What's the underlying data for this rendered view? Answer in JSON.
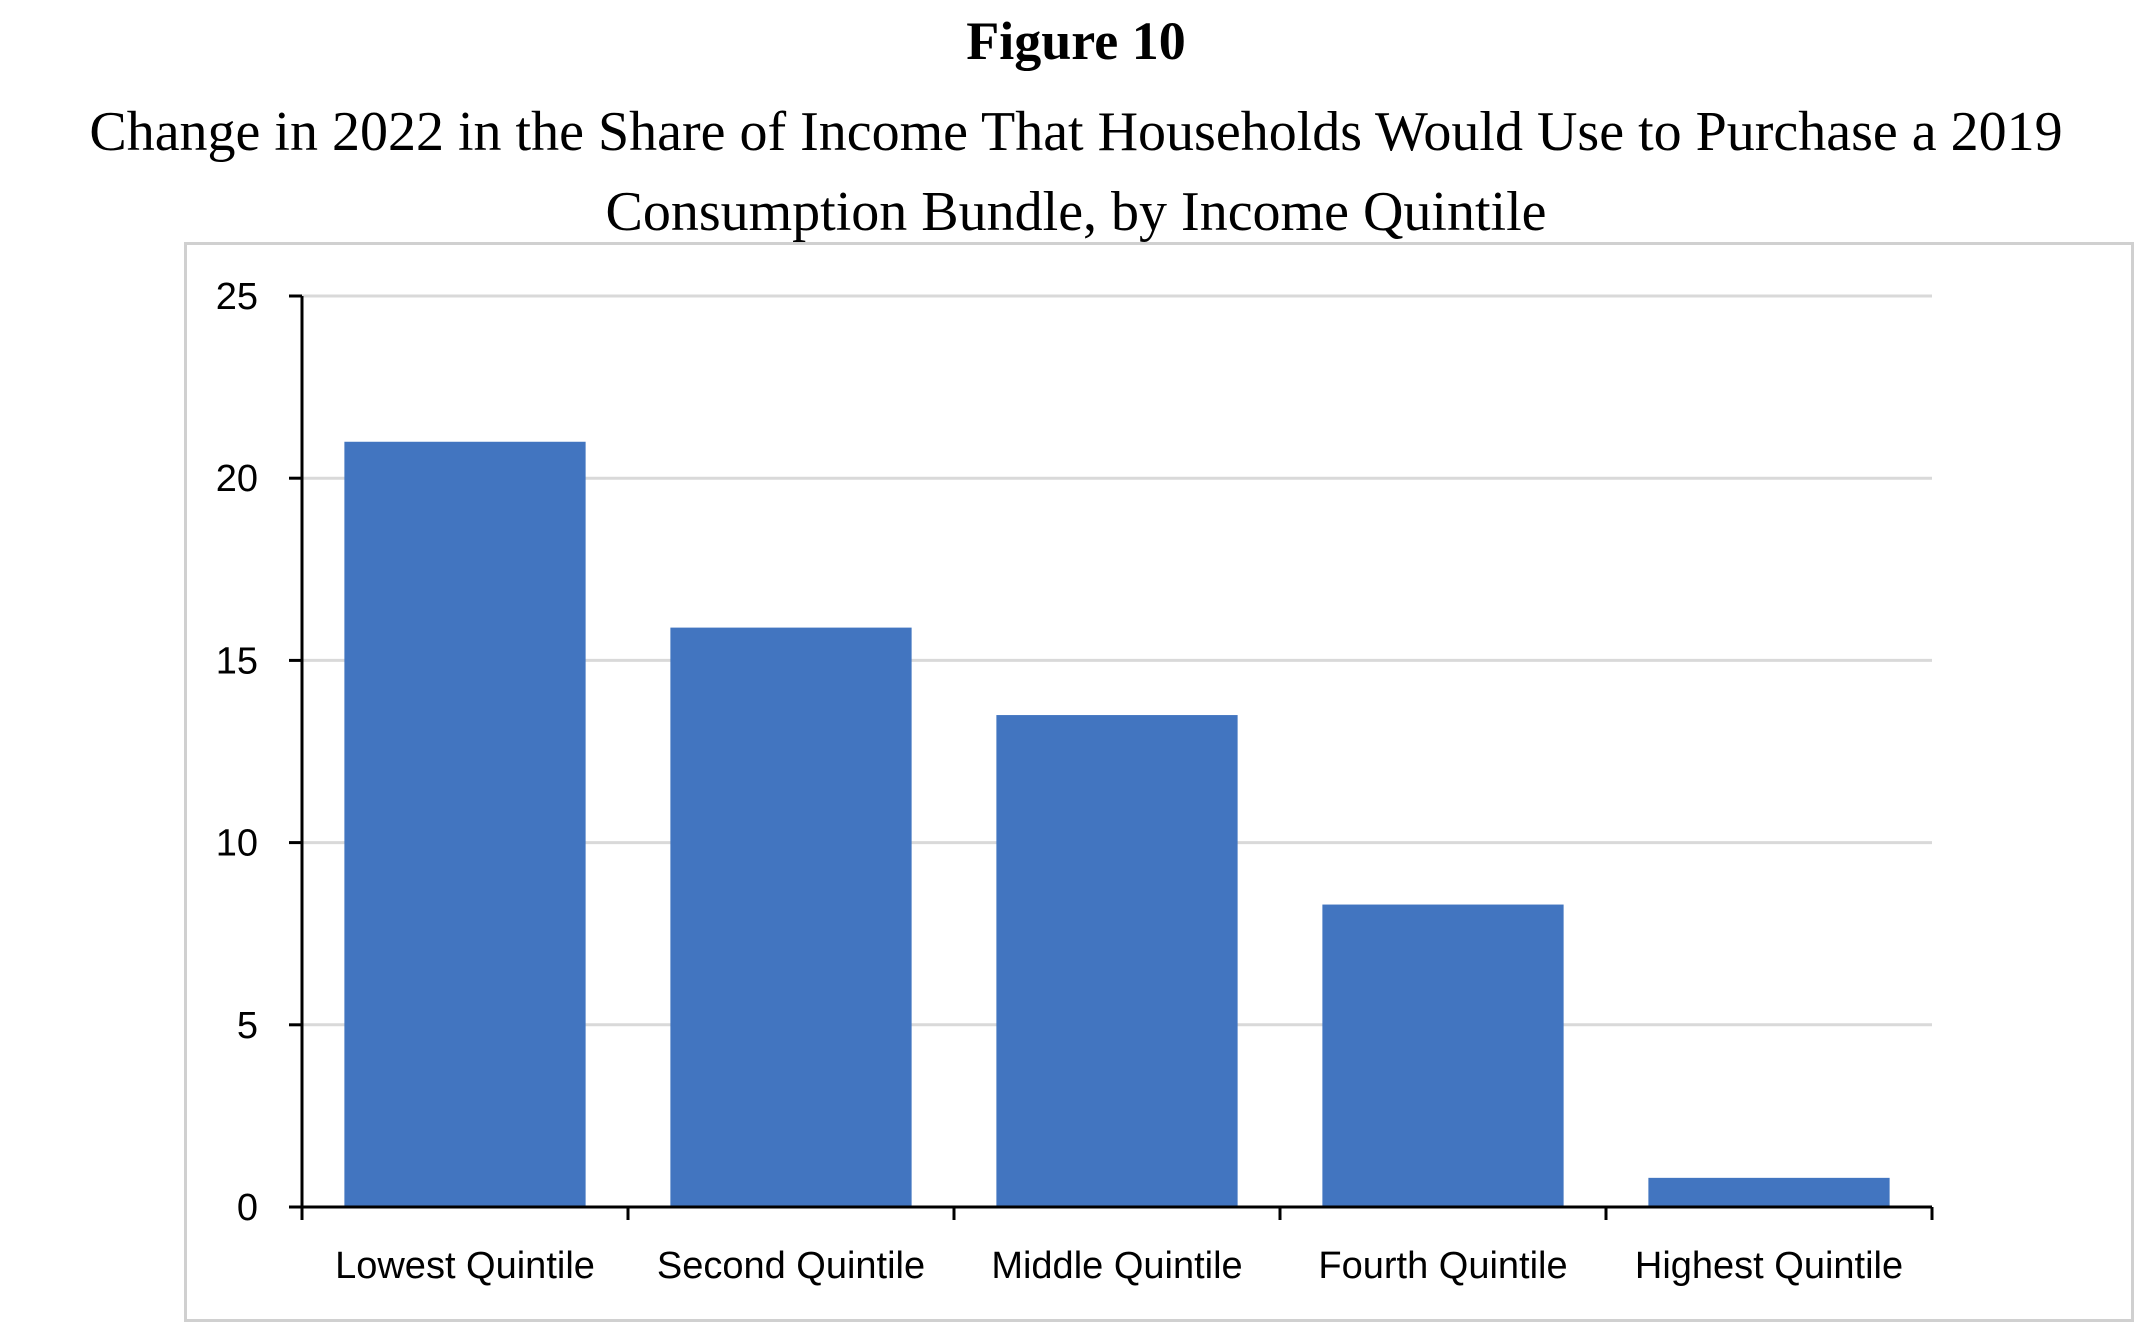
{
  "figure": {
    "label": "Figure 10",
    "title_lines": [
      "Change in 2022 in the Share of Income That Households Would Use to Purchase a 2019",
      "Consumption Bundle, by Income Quintile"
    ]
  },
  "chart_data": {
    "type": "bar",
    "categories": [
      "Lowest Quintile",
      "Second Quintile",
      "Middle Quintile",
      "Fourth Quintile",
      "Highest Quintile"
    ],
    "values": [
      21.0,
      15.9,
      13.5,
      8.3,
      0.8
    ],
    "ylim": [
      0,
      25
    ],
    "yticks": [
      0,
      5,
      10,
      15,
      20,
      25
    ],
    "grid": true,
    "legend": "none",
    "bar_color": "#4275c0",
    "grid_color": "#d9d9d9"
  }
}
